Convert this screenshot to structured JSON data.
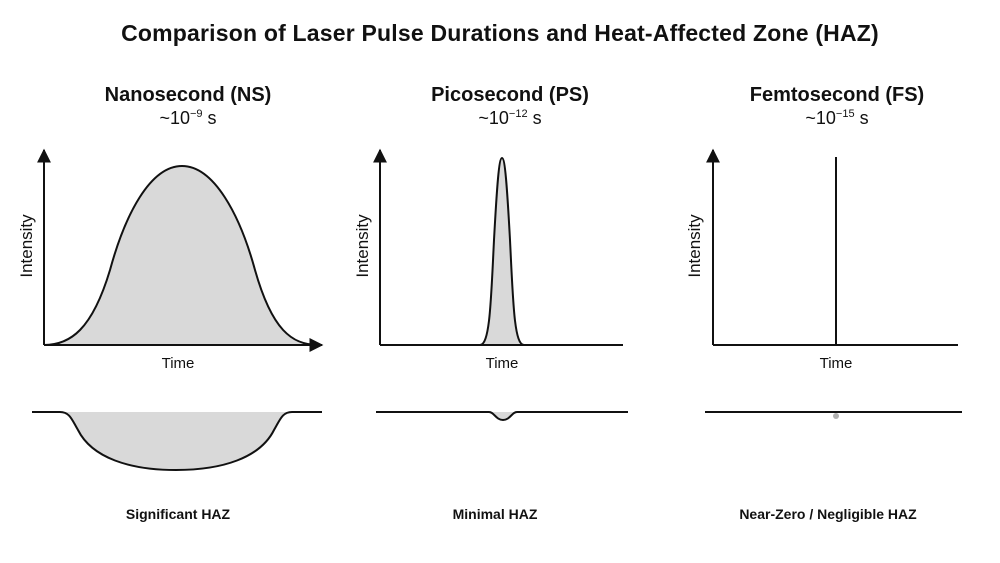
{
  "title": "Comparison of Laser Pulse Durations and Heat-Affected Zone (HAZ)",
  "axis_labels": {
    "y": "Intensity",
    "x": "Time"
  },
  "colors": {
    "fill": "#d9d9d9",
    "stroke": "#111111",
    "dot": "#b0b0b0"
  },
  "panels": [
    {
      "id": "ns",
      "title": "Nanosecond (NS)",
      "duration_base": "~10",
      "duration_exp": "−9",
      "duration_unit": "s",
      "haz_label": "Significant HAZ"
    },
    {
      "id": "ps",
      "title": "Picosecond (PS)",
      "duration_base": "~10",
      "duration_exp": "−12",
      "duration_unit": "s",
      "haz_label": "Minimal HAZ"
    },
    {
      "id": "fs",
      "title": "Femtosecond (FS)",
      "duration_base": "~10",
      "duration_exp": "−15",
      "duration_unit": "s",
      "haz_label": "Near-Zero / Negligible HAZ"
    }
  ]
}
